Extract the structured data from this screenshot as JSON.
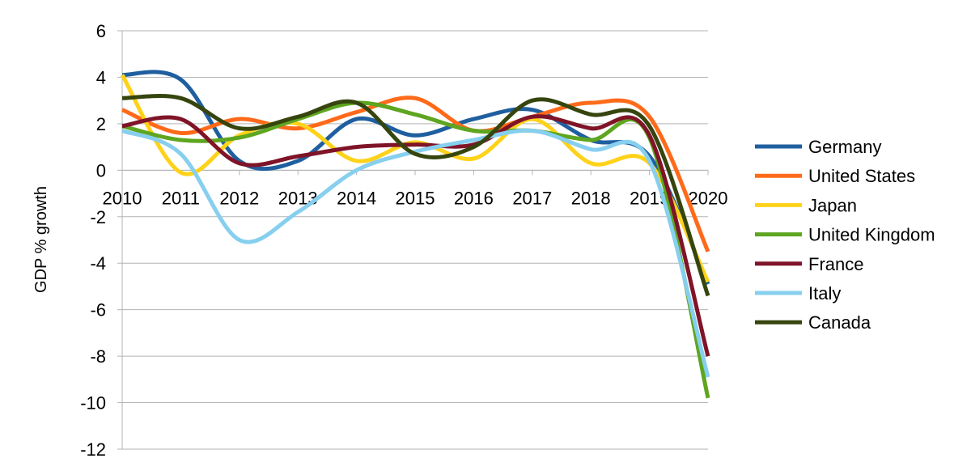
{
  "chart_data": {
    "type": "line",
    "title": "",
    "xlabel": "",
    "ylabel": "GDP % growth",
    "x": [
      2010,
      2011,
      2012,
      2013,
      2014,
      2015,
      2016,
      2017,
      2018,
      2019,
      2020
    ],
    "x_tick_labels": [
      "2010",
      "2011",
      "2012",
      "2013",
      "2014",
      "2015",
      "2016",
      "2017",
      "2018",
      "2019",
      "2020"
    ],
    "ylim": [
      -12,
      6
    ],
    "y_ticks": [
      6,
      4,
      2,
      0,
      -2,
      -4,
      -6,
      -8,
      -10,
      -12
    ],
    "y_tick_labels": [
      "6",
      "4",
      "2",
      "0",
      "-2",
      "-4",
      "-6",
      "-8",
      "-10",
      "-12"
    ],
    "grid": "horizontal",
    "legend_position": "right",
    "series": [
      {
        "name": "Germany",
        "color": "#1f5f9f",
        "values": [
          4.1,
          3.9,
          0.4,
          0.4,
          2.2,
          1.5,
          2.2,
          2.6,
          1.3,
          0.6,
          -4.9
        ]
      },
      {
        "name": "United States",
        "color": "#ff6a1a",
        "values": [
          2.6,
          1.6,
          2.2,
          1.8,
          2.5,
          3.1,
          1.7,
          2.3,
          2.9,
          2.3,
          -3.5
        ]
      },
      {
        "name": "Japan",
        "color": "#ffd21a",
        "values": [
          4.1,
          -0.1,
          1.5,
          2.0,
          0.4,
          1.2,
          0.5,
          2.2,
          0.3,
          0.3,
          -4.8
        ]
      },
      {
        "name": "United Kingdom",
        "color": "#5ea520",
        "values": [
          1.9,
          1.3,
          1.4,
          2.2,
          2.9,
          2.4,
          1.7,
          1.7,
          1.3,
          1.4,
          -9.8
        ]
      },
      {
        "name": "France",
        "color": "#7f1428",
        "values": [
          1.9,
          2.2,
          0.3,
          0.6,
          1.0,
          1.1,
          1.1,
          2.3,
          1.8,
          1.5,
          -8.0
        ]
      },
      {
        "name": "Italy",
        "color": "#87cfef",
        "values": [
          1.7,
          0.7,
          -3.0,
          -1.8,
          -0.0,
          0.8,
          1.3,
          1.7,
          0.9,
          0.4,
          -8.9
        ]
      },
      {
        "name": "Canada",
        "color": "#36450e",
        "values": [
          3.1,
          3.1,
          1.8,
          2.3,
          2.9,
          0.7,
          1.0,
          3.0,
          2.4,
          1.9,
          -5.4
        ]
      }
    ]
  }
}
